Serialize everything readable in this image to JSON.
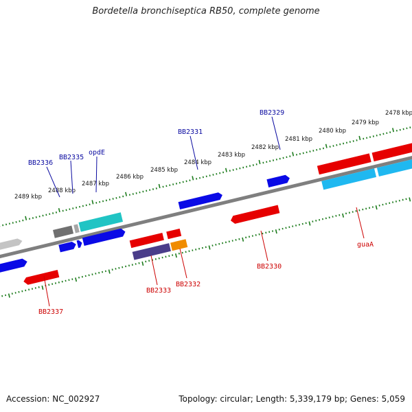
{
  "title": "Bordetella bronchiseptica RB50, complete genome",
  "footer": {
    "accession": "Accession: NC_002927",
    "summary": "Topology: circular; Length: 5,339,179 bp; Genes: 5,059"
  },
  "colors": {
    "backbone": "#808080",
    "ticks": "#1a7a1a",
    "label_forward": "#0a0aa0",
    "label_reverse": "#cc0000"
  },
  "scale_labels": [
    "2489 kbp",
    "2488 kbp",
    "2487 kbp",
    "2486 kbp",
    "2485 kbp",
    "2484 kbp",
    "2483 kbp",
    "2482 kbp",
    "2481 kbp",
    "2480 kbp",
    "2479 kbp",
    "2478 kbp"
  ],
  "gene_labels": {
    "BB2336": "BB2336",
    "BB2335": "BB2335",
    "opdE": "opdE",
    "BB2331": "BB2331",
    "BB2329": "BB2329",
    "BB2337": "BB2337",
    "BB2333": "BB2333",
    "BB2332": "BB2332",
    "BB2330": "BB2330",
    "guaA": "guaA"
  }
}
